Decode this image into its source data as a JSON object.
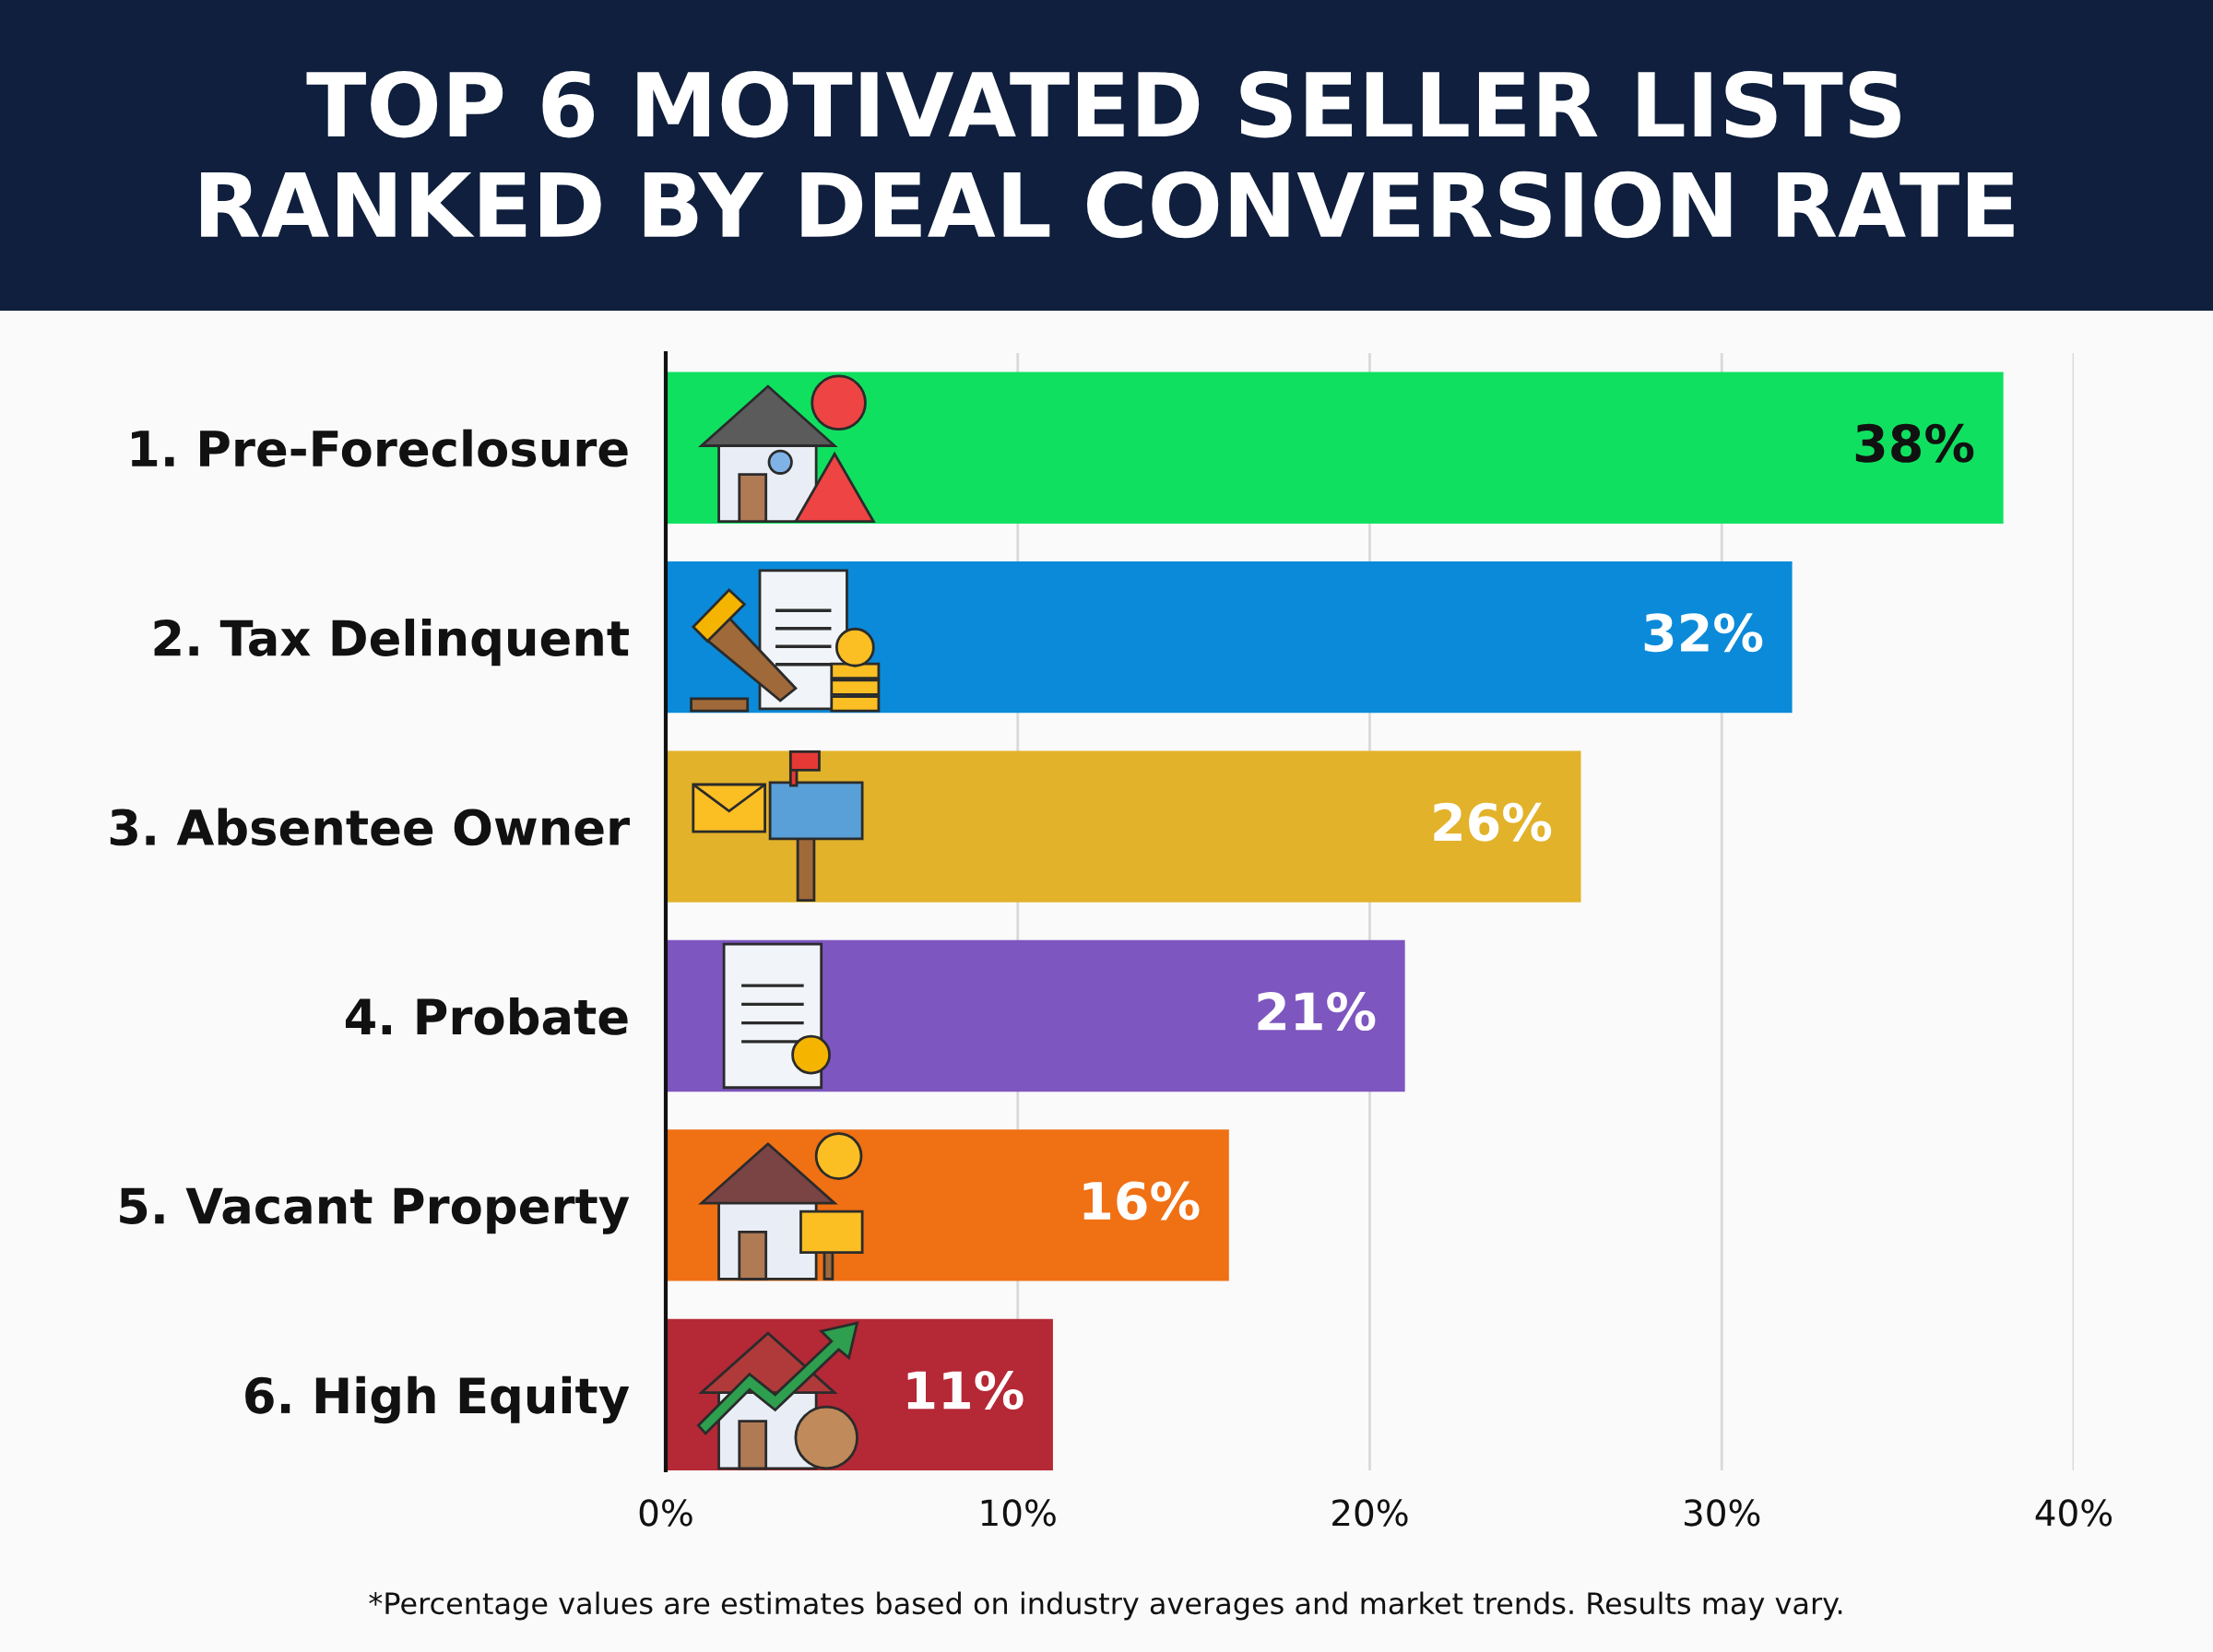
{
  "chart_data": {
    "type": "bar",
    "orientation": "horizontal",
    "title": "TOP 6 MOTIVATED SELLER LISTS\nRANKED BY DEAL CONVERSION RATE",
    "categories": [
      "1. Pre-Foreclosure",
      "2. Tax Delinquent",
      "3. Absentee Owner",
      "4. Probate",
      "5. Vacant Property",
      "6. High Equity"
    ],
    "values": [
      38,
      32,
      26,
      21,
      16,
      11
    ],
    "colors": [
      "#10e060",
      "#0b8ad9",
      "#e2b22a",
      "#7d56bf",
      "#f07014",
      "#b52836"
    ],
    "value_labels": [
      "38%",
      "32%",
      "26%",
      "21%",
      "16%",
      "11%"
    ],
    "xlim": [
      0,
      40
    ],
    "xticks": [
      {
        "value": 0,
        "label": "0%"
      },
      {
        "value": 10,
        "label": "10%"
      },
      {
        "value": 20,
        "label": "20%"
      },
      {
        "value": 30,
        "label": "30%"
      },
      {
        "value": 40,
        "label": "40%"
      }
    ],
    "grid": "x",
    "annotations": [
      "*Percentage values are estimates based on industry averages and market trends. Results may vary."
    ]
  }
}
